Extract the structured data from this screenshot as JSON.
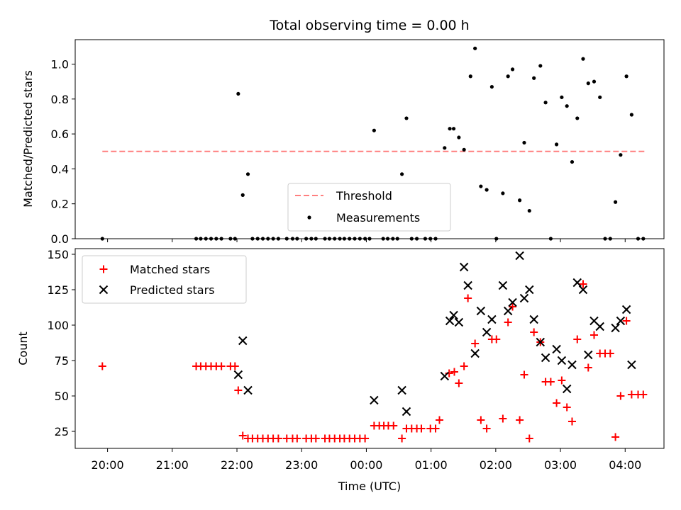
{
  "chart_data": [
    {
      "type": "scatter",
      "title": "Total observing time = 0.00 h",
      "ylabel": "Matched/Predicted stars",
      "xlabel": "",
      "ylim": [
        0,
        1.14
      ],
      "y_ticks": [
        "0.0",
        "0.2",
        "0.4",
        "0.6",
        "0.8",
        "1.0"
      ],
      "legend_position": "lower-center",
      "series": [
        {
          "name": "Threshold",
          "kind": "dashed-line",
          "color": "#ff7f7f",
          "x": [
            19.92,
            4.3
          ],
          "y": [
            0.5,
            0.5
          ]
        },
        {
          "name": "Measurements",
          "kind": "dot",
          "color": "#000000",
          "x": [
            19.92,
            21.37,
            21.44,
            21.52,
            21.6,
            21.68,
            21.76,
            21.9,
            21.97,
            22.02,
            22.09,
            22.17,
            22.24,
            22.32,
            22.4,
            22.48,
            22.56,
            22.64,
            22.77,
            22.86,
            22.93,
            23.07,
            23.15,
            23.22,
            23.36,
            23.43,
            23.51,
            23.59,
            23.66,
            23.74,
            23.82,
            23.9,
            23.98,
            0.05,
            0.12,
            0.26,
            0.33,
            0.41,
            0.48,
            0.55,
            0.62,
            0.7,
            0.78,
            0.91,
            0.99,
            1.07,
            1.21,
            1.29,
            1.35,
            1.43,
            1.51,
            1.61,
            1.68,
            1.77,
            1.86,
            1.94,
            2.01,
            2.11,
            2.19,
            2.26,
            2.37,
            2.44,
            2.52,
            2.59,
            2.69,
            2.77,
            2.85,
            2.94,
            3.02,
            3.1,
            3.18,
            3.26,
            3.35,
            3.43,
            3.52,
            3.61,
            3.69,
            3.77,
            3.85,
            3.93,
            4.02,
            4.1,
            4.2,
            4.28
          ],
          "y": [
            0.0,
            0.0,
            0.0,
            0.0,
            0.0,
            0.0,
            0.0,
            0.0,
            0.0,
            0.83,
            0.25,
            0.37,
            0.0,
            0.0,
            0.0,
            0.0,
            0.0,
            0.0,
            0.0,
            0.0,
            0.0,
            0.0,
            0.0,
            0.0,
            0.0,
            0.0,
            0.0,
            0.0,
            0.0,
            0.0,
            0.0,
            0.0,
            0.0,
            0.0,
            0.62,
            0.0,
            0.0,
            0.0,
            0.0,
            0.37,
            0.69,
            0.0,
            0.0,
            0.0,
            0.0,
            0.0,
            0.52,
            0.63,
            0.63,
            0.58,
            0.51,
            0.93,
            1.09,
            0.3,
            0.28,
            0.87,
            0.0,
            0.26,
            0.93,
            0.97,
            0.22,
            0.55,
            0.16,
            0.92,
            0.99,
            0.78,
            0.0,
            0.54,
            0.81,
            0.76,
            0.44,
            0.69,
            1.03,
            0.89,
            0.9,
            0.81,
            0.0,
            0.0,
            0.21,
            0.48,
            0.93,
            0.71,
            0.0,
            0.0
          ]
        }
      ]
    },
    {
      "type": "scatter",
      "title": "",
      "ylabel": "Count",
      "xlabel": "Time (UTC)",
      "ylim": [
        13,
        154
      ],
      "y_ticks": [
        "25",
        "50",
        "75",
        "100",
        "125",
        "150"
      ],
      "x_ticks": [
        "20:00",
        "21:00",
        "22:00",
        "23:00",
        "00:00",
        "01:00",
        "02:00",
        "03:00",
        "04:00"
      ],
      "x_tick_hours": [
        20,
        21,
        22,
        23,
        0,
        1,
        2,
        3,
        4
      ],
      "legend_position": "upper-left",
      "series": [
        {
          "name": "Matched stars",
          "kind": "plus",
          "color": "#ff0000",
          "x": [
            19.92,
            21.37,
            21.44,
            21.52,
            21.6,
            21.68,
            21.76,
            21.9,
            21.97,
            22.02,
            22.09,
            22.17,
            22.24,
            22.32,
            22.4,
            22.48,
            22.56,
            22.64,
            22.77,
            22.86,
            22.93,
            23.07,
            23.15,
            23.22,
            23.36,
            23.43,
            23.51,
            23.59,
            23.66,
            23.74,
            23.82,
            23.9,
            23.98,
            0.12,
            0.2,
            0.27,
            0.34,
            0.42,
            0.55,
            0.62,
            0.7,
            0.78,
            0.85,
            0.99,
            1.07,
            1.13,
            1.28,
            1.36,
            1.43,
            1.51,
            1.57,
            1.68,
            1.77,
            1.86,
            1.94,
            2.01,
            2.11,
            2.19,
            2.26,
            2.37,
            2.44,
            2.52,
            2.59,
            2.69,
            2.77,
            2.85,
            2.94,
            3.02,
            3.1,
            3.18,
            3.26,
            3.35,
            3.43,
            3.52,
            3.61,
            3.69,
            3.77,
            3.85,
            3.93,
            4.02,
            4.1,
            4.2,
            4.28
          ],
          "y": [
            71,
            71,
            71,
            71,
            71,
            71,
            71,
            71,
            71,
            54,
            22,
            20,
            20,
            20,
            20,
            20,
            20,
            20,
            20,
            20,
            20,
            20,
            20,
            20,
            20,
            20,
            20,
            20,
            20,
            20,
            20,
            20,
            20,
            29,
            29,
            29,
            29,
            29,
            20,
            27,
            27,
            27,
            27,
            27,
            27,
            33,
            66,
            67,
            59,
            71,
            119,
            87,
            33,
            27,
            90,
            90,
            34,
            102,
            113,
            33,
            65,
            20,
            95,
            88,
            60,
            60,
            45,
            61,
            42,
            32,
            90,
            129,
            70,
            93,
            80,
            80,
            80,
            21,
            50,
            103,
            51,
            51,
            51
          ]
        },
        {
          "name": "Predicted stars",
          "kind": "x",
          "color": "#000000",
          "x": [
            22.02,
            22.09,
            22.17,
            0.12,
            0.55,
            0.62,
            1.21,
            1.29,
            1.35,
            1.43,
            1.51,
            1.57,
            1.68,
            1.77,
            1.86,
            1.94,
            2.11,
            2.19,
            2.26,
            2.37,
            2.44,
            2.52,
            2.59,
            2.69,
            2.77,
            2.94,
            3.02,
            3.1,
            3.18,
            3.26,
            3.35,
            3.43,
            3.52,
            3.61,
            3.85,
            3.93,
            4.02,
            4.1
          ],
          "y": [
            65,
            89,
            54,
            47,
            54,
            39,
            64,
            103,
            107,
            102,
            141,
            128,
            80,
            110,
            95,
            104,
            128,
            110,
            116,
            149,
            119,
            125,
            104,
            88,
            77,
            83,
            75,
            55,
            72,
            130,
            125,
            79,
            103,
            99,
            98,
            103,
            111,
            72
          ]
        }
      ]
    }
  ]
}
